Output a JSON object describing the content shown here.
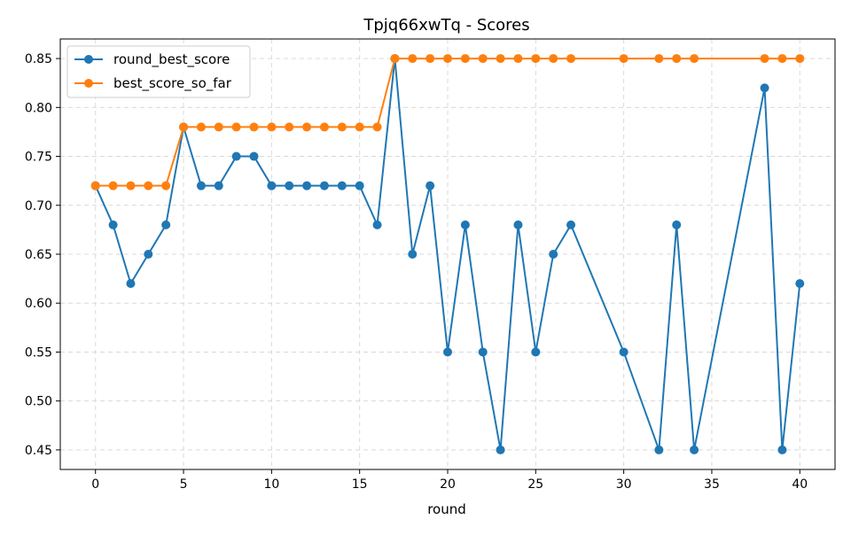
{
  "chart_data": {
    "type": "line",
    "title": "Tpjq66xwTq - Scores",
    "xlabel": "round",
    "ylabel": "",
    "xlim": [
      -2,
      42
    ],
    "ylim": [
      0.43,
      0.87
    ],
    "xticks": [
      0,
      5,
      10,
      15,
      20,
      25,
      30,
      35,
      40
    ],
    "yticks": [
      0.45,
      0.5,
      0.55,
      0.6,
      0.65,
      0.7,
      0.75,
      0.8,
      0.85
    ],
    "grid": true,
    "legend_position": "top-left",
    "series": [
      {
        "name": "round_best_score",
        "color": "#1f77b4",
        "x": [
          0,
          1,
          2,
          3,
          4,
          5,
          6,
          7,
          8,
          9,
          10,
          11,
          12,
          13,
          14,
          15,
          16,
          17,
          18,
          19,
          20,
          21,
          22,
          23,
          24,
          25,
          26,
          27,
          30,
          32,
          33,
          34,
          38,
          39,
          40
        ],
        "y": [
          0.72,
          0.68,
          0.62,
          0.65,
          0.68,
          0.78,
          0.72,
          0.72,
          0.75,
          0.75,
          0.72,
          0.72,
          0.72,
          0.72,
          0.72,
          0.72,
          0.68,
          0.85,
          0.65,
          0.72,
          0.55,
          0.68,
          0.55,
          0.45,
          0.68,
          0.55,
          0.65,
          0.68,
          0.55,
          0.45,
          0.68,
          0.45,
          0.82,
          0.45,
          0.62
        ]
      },
      {
        "name": "best_score_so_far",
        "color": "#ff7f0e",
        "x": [
          0,
          1,
          2,
          3,
          4,
          5,
          6,
          7,
          8,
          9,
          10,
          11,
          12,
          13,
          14,
          15,
          16,
          17,
          18,
          19,
          20,
          21,
          22,
          23,
          24,
          25,
          26,
          27,
          30,
          32,
          33,
          34,
          38,
          39,
          40
        ],
        "y": [
          0.72,
          0.72,
          0.72,
          0.72,
          0.72,
          0.78,
          0.78,
          0.78,
          0.78,
          0.78,
          0.78,
          0.78,
          0.78,
          0.78,
          0.78,
          0.78,
          0.78,
          0.85,
          0.85,
          0.85,
          0.85,
          0.85,
          0.85,
          0.85,
          0.85,
          0.85,
          0.85,
          0.85,
          0.85,
          0.85,
          0.85,
          0.85,
          0.85,
          0.85,
          0.85
        ]
      }
    ]
  }
}
